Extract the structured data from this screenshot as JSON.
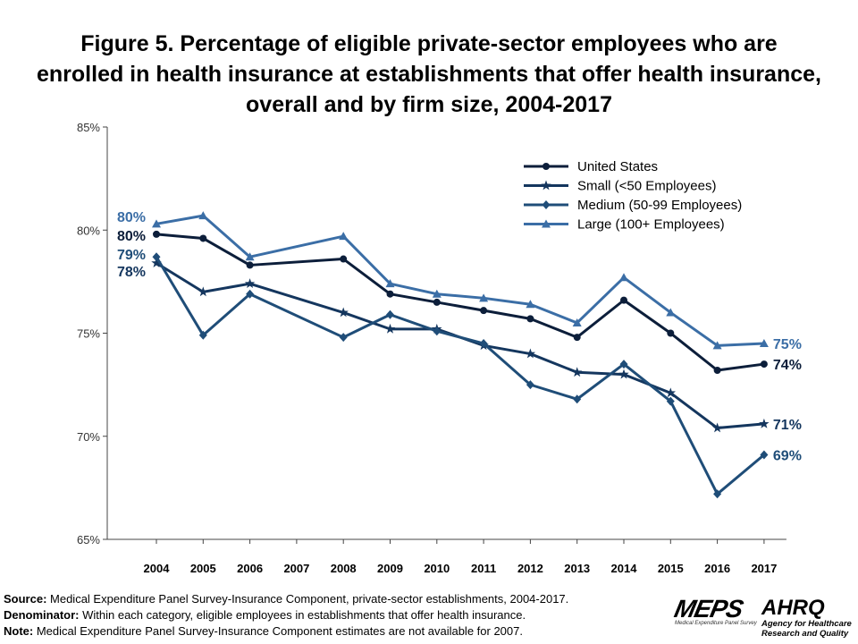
{
  "chart_data": {
    "type": "line",
    "title": "Figure 5. Percentage of eligible private-sector employees who are enrolled in health insurance at establishments that offer health insurance, overall and by firm size, 2004-2017",
    "categories": [
      "2004",
      "2005",
      "2006",
      "2007",
      "2008",
      "2009",
      "2010",
      "2011",
      "2012",
      "2013",
      "2014",
      "2015",
      "2016",
      "2017"
    ],
    "ylim": [
      65,
      85
    ],
    "yticks": [
      "65%",
      "70%",
      "75%",
      "80%",
      "85%"
    ],
    "ytick_values": [
      65,
      70,
      75,
      80,
      85
    ],
    "grid": false,
    "legend_position": "top-right",
    "series": [
      {
        "name": "United States",
        "color": "#0c1e3a",
        "marker": "circle",
        "values": [
          79.8,
          79.6,
          78.3,
          null,
          78.6,
          76.9,
          76.5,
          76.1,
          75.7,
          74.8,
          76.6,
          75.0,
          73.2,
          73.5
        ],
        "labels": {
          "start": "80%",
          "end": "74%"
        }
      },
      {
        "name": "Small (<50 Employees)",
        "color": "#14365e",
        "marker": "star",
        "values": [
          78.4,
          77.0,
          77.4,
          null,
          76.0,
          75.2,
          75.2,
          74.4,
          74.0,
          73.1,
          73.0,
          72.1,
          70.4,
          70.6
        ],
        "labels": {
          "start": "78%",
          "end": "71%"
        }
      },
      {
        "name": "Medium (50-99 Employees)",
        "color": "#1f4d78",
        "marker": "diamond",
        "values": [
          78.7,
          74.9,
          76.9,
          null,
          74.8,
          75.9,
          75.1,
          74.5,
          72.5,
          71.8,
          73.5,
          71.7,
          67.2,
          69.1
        ],
        "labels": {
          "start": "79%",
          "end": "69%"
        }
      },
      {
        "name": "Large (100+ Employees)",
        "color": "#3b6ea6",
        "marker": "triangle",
        "values": [
          80.3,
          80.7,
          78.7,
          null,
          79.7,
          77.4,
          76.9,
          76.7,
          76.4,
          75.5,
          77.7,
          76.0,
          74.4,
          74.5
        ],
        "labels": {
          "start": "80%",
          "end": "75%"
        }
      }
    ]
  },
  "notes": {
    "source_label": "Source:",
    "source_text": " Medical Expenditure Panel Survey-Insurance Component,  private-sector establishments, 2004-2017.",
    "denominator_label": "Denominator:",
    "denominator_text": " Within each category, eligible employees in establishments that offer health insurance.",
    "note_label": "Note:",
    "note_text": " Medical Expenditure Panel Survey-Insurance Component  estimates are not available for 2007."
  },
  "logos": {
    "meps": "MEPS",
    "meps_sub": "Medical Expenditure Panel Survey",
    "ahrq": "AHRQ",
    "ahrq_sub1": "Agency for Healthcare",
    "ahrq_sub2": "Research and Quality"
  }
}
